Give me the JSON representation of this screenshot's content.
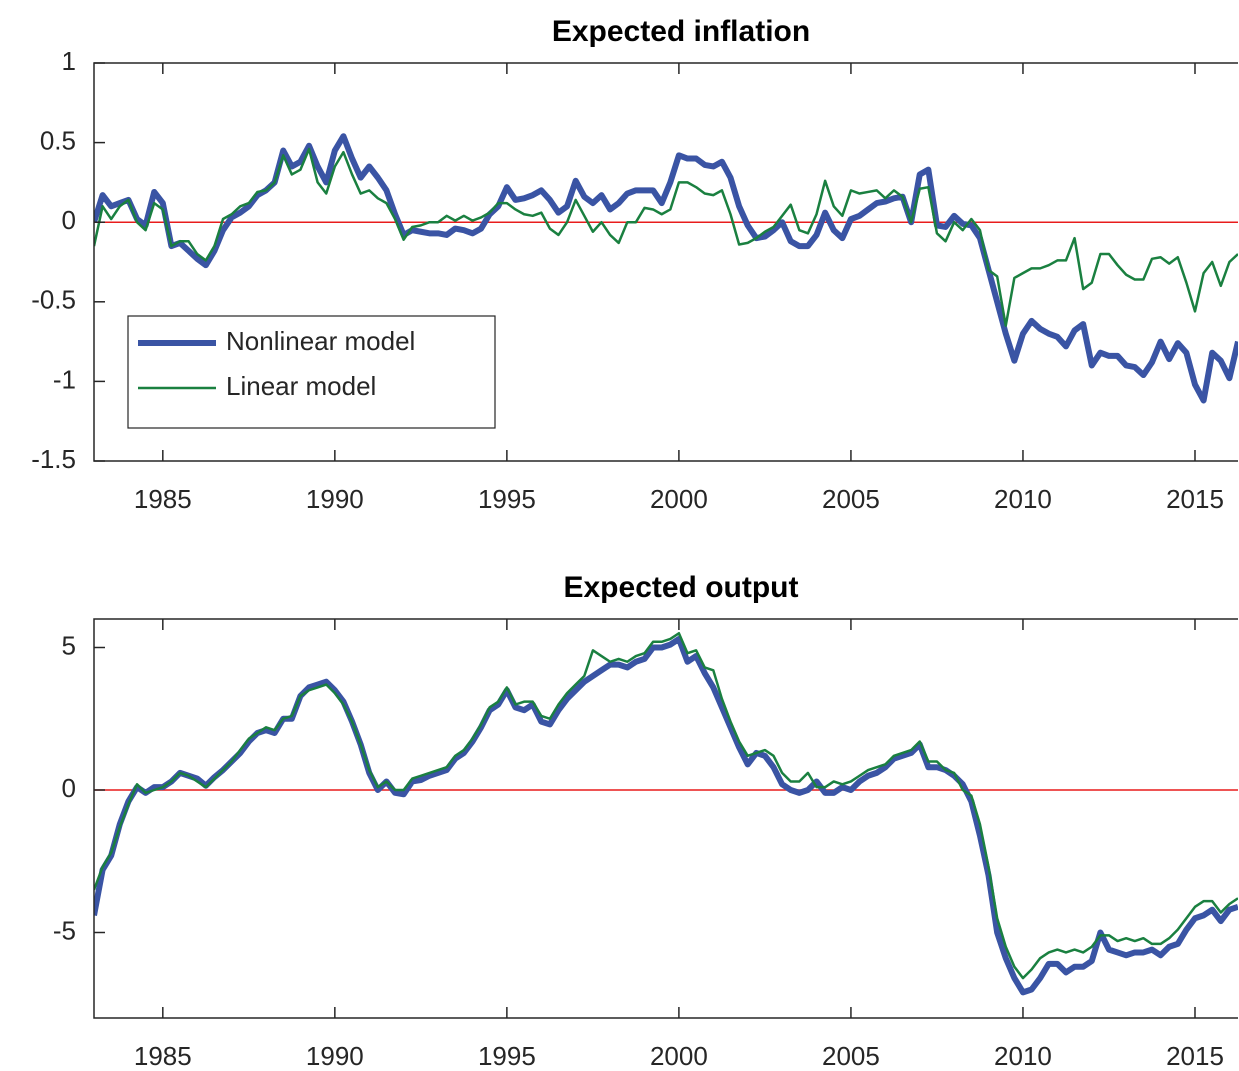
{
  "chart_data": [
    {
      "type": "line",
      "title": "Expected inflation",
      "x": [
        1983,
        1983.25,
        1983.5,
        1983.75,
        1984,
        1984.25,
        1984.5,
        1984.75,
        1985,
        1985.25,
        1985.5,
        1985.75,
        1986,
        1986.25,
        1986.5,
        1986.75,
        1987,
        1987.25,
        1987.5,
        1987.75,
        1988,
        1988.25,
        1988.5,
        1988.75,
        1989,
        1989.25,
        1989.5,
        1989.75,
        1990,
        1990.25,
        1990.5,
        1990.75,
        1991,
        1991.25,
        1991.5,
        1991.75,
        1992,
        1992.25,
        1992.5,
        1992.75,
        1993,
        1993.25,
        1993.5,
        1993.75,
        1994,
        1994.25,
        1994.5,
        1994.75,
        1995,
        1995.25,
        1995.5,
        1995.75,
        1996,
        1996.25,
        1996.5,
        1996.75,
        1997,
        1997.25,
        1997.5,
        1997.75,
        1998,
        1998.25,
        1998.5,
        1998.75,
        1999,
        1999.25,
        1999.5,
        1999.75,
        2000,
        2000.25,
        2000.5,
        2000.75,
        2001,
        2001.25,
        2001.5,
        2001.75,
        2002,
        2002.25,
        2002.5,
        2002.75,
        2003,
        2003.25,
        2003.5,
        2003.75,
        2004,
        2004.25,
        2004.5,
        2004.75,
        2005,
        2005.25,
        2005.5,
        2005.75,
        2006,
        2006.25,
        2006.5,
        2006.75,
        2007,
        2007.25,
        2007.5,
        2007.75,
        2008,
        2008.25,
        2008.5,
        2008.75,
        2009,
        2009.25,
        2009.5,
        2009.75,
        2010,
        2010.25,
        2010.5,
        2010.75,
        2011,
        2011.25,
        2011.5,
        2011.75,
        2012,
        2012.25,
        2012.5,
        2012.75,
        2013,
        2013.25,
        2013.5,
        2013.75,
        2014,
        2014.25,
        2014.5,
        2014.75,
        2015,
        2015.25,
        2015.5,
        2015.75,
        2016,
        2016.25
      ],
      "series": [
        {
          "name": "Nonlinear model",
          "color": "#3a54a4",
          "values": [
            0.0,
            0.17,
            0.1,
            0.12,
            0.14,
            0.02,
            -0.02,
            0.19,
            0.12,
            -0.15,
            -0.13,
            -0.18,
            -0.23,
            -0.27,
            -0.18,
            -0.05,
            0.03,
            0.06,
            0.1,
            0.17,
            0.2,
            0.25,
            0.45,
            0.35,
            0.38,
            0.48,
            0.35,
            0.25,
            0.45,
            0.54,
            0.4,
            0.28,
            0.35,
            0.28,
            0.2,
            0.05,
            -0.08,
            -0.05,
            -0.06,
            -0.07,
            -0.07,
            -0.08,
            -0.04,
            -0.05,
            -0.07,
            -0.04,
            0.05,
            0.1,
            0.22,
            0.14,
            0.15,
            0.17,
            0.2,
            0.14,
            0.06,
            0.1,
            0.26,
            0.16,
            0.12,
            0.17,
            0.08,
            0.12,
            0.18,
            0.2,
            0.2,
            0.2,
            0.12,
            0.25,
            0.42,
            0.4,
            0.4,
            0.36,
            0.35,
            0.38,
            0.28,
            0.1,
            -0.02,
            -0.1,
            -0.09,
            -0.05,
            0.0,
            -0.12,
            -0.15,
            -0.15,
            -0.08,
            0.06,
            -0.05,
            -0.1,
            0.02,
            0.04,
            0.08,
            0.12,
            0.13,
            0.15,
            0.16,
            0.0,
            0.3,
            0.33,
            -0.02,
            -0.03,
            0.04,
            -0.01,
            -0.02,
            -0.1,
            -0.3,
            -0.5,
            -0.7,
            -0.87,
            -0.7,
            -0.62,
            -0.67,
            -0.7,
            -0.72,
            -0.78,
            -0.68,
            -0.64,
            -0.9,
            -0.82,
            -0.84,
            -0.84,
            -0.9,
            -0.91,
            -0.96,
            -0.88,
            -0.75,
            -0.86,
            -0.76,
            -0.82,
            -1.02,
            -1.12,
            -0.82,
            -0.87,
            -0.98,
            -0.75
          ]
        },
        {
          "name": "Linear model",
          "color": "#1a8040",
          "values": [
            -0.15,
            0.1,
            0.02,
            0.1,
            0.14,
            0.0,
            -0.05,
            0.12,
            0.08,
            -0.15,
            -0.12,
            -0.12,
            -0.2,
            -0.24,
            -0.15,
            0.02,
            0.05,
            0.1,
            0.12,
            0.19,
            0.2,
            0.25,
            0.42,
            0.3,
            0.33,
            0.46,
            0.25,
            0.18,
            0.35,
            0.44,
            0.3,
            0.18,
            0.2,
            0.15,
            0.12,
            0.02,
            -0.11,
            -0.03,
            -0.02,
            0.0,
            0.0,
            0.04,
            0.01,
            0.04,
            0.01,
            0.03,
            0.06,
            0.12,
            0.12,
            0.08,
            0.05,
            0.04,
            0.06,
            -0.04,
            -0.08,
            0.0,
            0.14,
            0.04,
            -0.06,
            0.0,
            -0.08,
            -0.13,
            0.0,
            0.0,
            0.09,
            0.08,
            0.05,
            0.08,
            0.25,
            0.25,
            0.22,
            0.18,
            0.17,
            0.2,
            0.05,
            -0.14,
            -0.13,
            -0.1,
            -0.06,
            -0.03,
            0.04,
            0.11,
            -0.05,
            -0.07,
            0.05,
            0.26,
            0.1,
            0.04,
            0.2,
            0.18,
            0.19,
            0.2,
            0.15,
            0.2,
            0.16,
            0.0,
            0.21,
            0.22,
            -0.07,
            -0.12,
            0.0,
            -0.05,
            0.02,
            -0.05,
            -0.3,
            -0.34,
            -0.65,
            -0.35,
            -0.32,
            -0.29,
            -0.29,
            -0.27,
            -0.24,
            -0.24,
            -0.1,
            -0.42,
            -0.38,
            -0.2,
            -0.2,
            -0.27,
            -0.33,
            -0.36,
            -0.36,
            -0.23,
            -0.22,
            -0.26,
            -0.22,
            -0.38,
            -0.56,
            -0.32,
            -0.25,
            -0.4,
            -0.25,
            -0.2
          ]
        }
      ],
      "xlim": [
        1983,
        2016.25
      ],
      "xticks": [
        1985,
        1990,
        1995,
        2000,
        2005,
        2010,
        2015
      ],
      "ylim": [
        -1.5,
        1
      ],
      "yticks": [
        -1.5,
        -1,
        -0.5,
        0,
        0.5,
        1
      ],
      "reference_line": {
        "value": 0,
        "color": "#e81c1c"
      },
      "legend": "lower left"
    },
    {
      "type": "line",
      "title": "Expected output",
      "x": [
        1983,
        1983.25,
        1983.5,
        1983.75,
        1984,
        1984.25,
        1984.5,
        1984.75,
        1985,
        1985.25,
        1985.5,
        1985.75,
        1986,
        1986.25,
        1986.5,
        1986.75,
        1987,
        1987.25,
        1987.5,
        1987.75,
        1988,
        1988.25,
        1988.5,
        1988.75,
        1989,
        1989.25,
        1989.5,
        1989.75,
        1990,
        1990.25,
        1990.5,
        1990.75,
        1991,
        1991.25,
        1991.5,
        1991.75,
        1992,
        1992.25,
        1992.5,
        1992.75,
        1993,
        1993.25,
        1993.5,
        1993.75,
        1994,
        1994.25,
        1994.5,
        1994.75,
        1995,
        1995.25,
        1995.5,
        1995.75,
        1996,
        1996.25,
        1996.5,
        1996.75,
        1997,
        1997.25,
        1997.5,
        1997.75,
        1998,
        1998.25,
        1998.5,
        1998.75,
        1999,
        1999.25,
        1999.5,
        1999.75,
        2000,
        2000.25,
        2000.5,
        2000.75,
        2001,
        2001.25,
        2001.5,
        2001.75,
        2002,
        2002.25,
        2002.5,
        2002.75,
        2003,
        2003.25,
        2003.5,
        2003.75,
        2004,
        2004.25,
        2004.5,
        2004.75,
        2005,
        2005.25,
        2005.5,
        2005.75,
        2006,
        2006.25,
        2006.5,
        2006.75,
        2007,
        2007.25,
        2007.5,
        2007.75,
        2008,
        2008.25,
        2008.5,
        2008.75,
        2009,
        2009.25,
        2009.5,
        2009.75,
        2010,
        2010.25,
        2010.5,
        2010.75,
        2011,
        2011.25,
        2011.5,
        2011.75,
        2012,
        2012.25,
        2012.5,
        2012.75,
        2013,
        2013.25,
        2013.5,
        2013.75,
        2014,
        2014.25,
        2014.5,
        2014.75,
        2015,
        2015.25,
        2015.5,
        2015.75,
        2016,
        2016.25
      ],
      "series": [
        {
          "name": "Nonlinear model",
          "color": "#3a54a4",
          "values": [
            -4.4,
            -2.8,
            -2.3,
            -1.2,
            -0.4,
            0.1,
            -0.1,
            0.1,
            0.1,
            0.3,
            0.6,
            0.5,
            0.4,
            0.15,
            0.45,
            0.7,
            1.0,
            1.3,
            1.7,
            2.0,
            2.1,
            2.0,
            2.5,
            2.5,
            3.3,
            3.6,
            3.7,
            3.8,
            3.5,
            3.1,
            2.4,
            1.6,
            0.6,
            0.0,
            0.3,
            -0.1,
            -0.15,
            0.3,
            0.35,
            0.5,
            0.6,
            0.7,
            1.1,
            1.3,
            1.7,
            2.2,
            2.8,
            3.0,
            3.5,
            2.9,
            2.8,
            3.0,
            2.4,
            2.3,
            2.8,
            3.2,
            3.5,
            3.8,
            4.0,
            4.2,
            4.4,
            4.4,
            4.3,
            4.5,
            4.6,
            5.0,
            5.0,
            5.1,
            5.3,
            4.5,
            4.7,
            4.1,
            3.6,
            2.9,
            2.2,
            1.5,
            0.9,
            1.3,
            1.2,
            0.8,
            0.2,
            0.0,
            -0.1,
            0.0,
            0.3,
            -0.1,
            -0.1,
            0.1,
            0.0,
            0.3,
            0.5,
            0.6,
            0.8,
            1.1,
            1.2,
            1.3,
            1.6,
            0.8,
            0.8,
            0.7,
            0.5,
            0.2,
            -0.4,
            -1.6,
            -3.0,
            -5.0,
            -5.9,
            -6.6,
            -7.1,
            -7.0,
            -6.6,
            -6.1,
            -6.1,
            -6.4,
            -6.2,
            -6.2,
            -6.0,
            -5.0,
            -5.6,
            -5.7,
            -5.8,
            -5.7,
            -5.7,
            -5.6,
            -5.8,
            -5.5,
            -5.4,
            -4.9,
            -4.5,
            -4.4,
            -4.2,
            -4.6,
            -4.2,
            -4.1
          ]
        },
        {
          "name": "Linear model",
          "color": "#1a8040",
          "values": [
            -3.5,
            -2.7,
            -2.2,
            -1.3,
            -0.5,
            0.2,
            -0.1,
            0.0,
            0.1,
            0.3,
            0.6,
            0.5,
            0.3,
            0.1,
            0.4,
            0.7,
            1.0,
            1.4,
            1.8,
            2.0,
            2.2,
            2.1,
            2.5,
            2.6,
            3.3,
            3.5,
            3.6,
            3.7,
            3.4,
            3.0,
            2.4,
            1.6,
            0.7,
            0.1,
            0.3,
            0.0,
            0.0,
            0.4,
            0.5,
            0.6,
            0.7,
            0.8,
            1.2,
            1.4,
            1.8,
            2.3,
            2.9,
            3.1,
            3.6,
            3.0,
            3.1,
            3.1,
            2.6,
            2.5,
            3.0,
            3.4,
            3.7,
            4.0,
            4.9,
            4.7,
            4.5,
            4.6,
            4.5,
            4.7,
            4.8,
            5.2,
            5.2,
            5.3,
            5.5,
            4.8,
            4.9,
            4.3,
            4.2,
            3.2,
            2.4,
            1.7,
            1.2,
            1.3,
            1.4,
            1.2,
            0.6,
            0.3,
            0.3,
            0.6,
            0.1,
            0.1,
            0.3,
            0.2,
            0.3,
            0.5,
            0.7,
            0.8,
            0.9,
            1.2,
            1.3,
            1.4,
            1.7,
            1.0,
            1.0,
            0.7,
            0.6,
            0.0,
            -0.2,
            -1.2,
            -2.7,
            -4.5,
            -5.5,
            -6.2,
            -6.6,
            -6.3,
            -5.9,
            -5.7,
            -5.6,
            -5.7,
            -5.6,
            -5.7,
            -5.5,
            -5.1,
            -5.1,
            -5.3,
            -5.2,
            -5.3,
            -5.2,
            -5.4,
            -5.4,
            -5.2,
            -4.9,
            -4.5,
            -4.1,
            -3.9,
            -3.9,
            -4.3,
            -4.0,
            -3.8
          ]
        }
      ],
      "xlim": [
        1983,
        2016.25
      ],
      "xticks": [
        1985,
        1990,
        1995,
        2000,
        2005,
        2010,
        2015
      ],
      "ylim": [
        -8,
        6
      ],
      "yticks": [
        -5,
        0,
        5
      ],
      "reference_line": {
        "value": 0,
        "color": "#e81c1c"
      }
    }
  ]
}
